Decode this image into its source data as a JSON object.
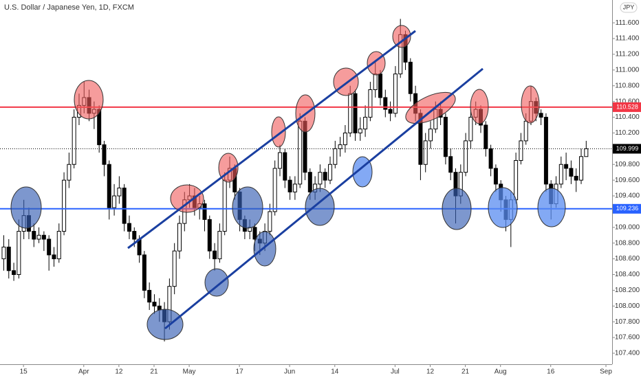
{
  "chart_data": {
    "type": "candlestick",
    "title": "U.S. Dollar / Japanese Yen, 1D, FXCM",
    "currency": "JPY",
    "open": [
      108.6,
      108.75,
      108.45,
      108.4,
      108.95,
      109.15,
      108.95,
      108.85,
      108.9,
      108.85,
      108.65,
      108.6,
      108.95,
      109.6,
      109.8,
      110.4,
      110.55,
      110.65,
      110.45,
      110.5,
      110.05,
      109.8,
      109.25,
      109.4,
      109.5,
      109.05,
      108.95,
      108.85,
      108.65,
      108.2,
      108.05,
      108.0,
      107.95,
      107.8,
      108.25,
      108.7,
      109.05,
      109.35,
      109.4,
      109.25,
      109.3,
      109.1,
      108.7,
      108.6,
      108.95,
      109.6,
      109.75,
      109.45,
      109.1,
      108.95,
      109.0,
      108.85,
      108.8,
      108.95,
      109.2,
      109.75,
      109.95,
      109.6,
      109.45,
      109.55,
      110.35,
      109.7,
      109.45,
      109.55,
      109.7,
      109.6,
      109.8,
      110.0,
      110.05,
      110.2,
      110.7,
      110.2,
      110.25,
      110.4,
      110.75,
      110.95,
      110.65,
      110.5,
      110.45,
      110.95,
      111.45,
      111.1,
      110.7,
      110.45,
      109.8,
      110.1,
      110.25,
      110.5,
      110.4,
      109.9,
      109.7,
      109.4,
      109.7,
      110.1,
      110.4,
      110.5,
      110.3,
      110.0,
      109.75,
      109.55,
      109.35,
      109.1,
      109.35,
      109.85,
      110.1,
      110.35,
      110.6,
      110.45,
      110.4,
      109.55,
      109.3,
      109.55,
      109.8,
      109.75,
      109.65,
      109.6,
      109.9
    ],
    "high": [
      108.9,
      108.85,
      108.55,
      109.1,
      109.35,
      109.25,
      109.05,
      109.0,
      108.95,
      108.9,
      108.75,
      109.05,
      109.7,
      109.95,
      110.5,
      110.7,
      110.85,
      110.75,
      110.6,
      110.55,
      110.1,
      109.85,
      109.55,
      109.65,
      109.55,
      109.15,
      109.0,
      108.9,
      108.7,
      108.3,
      108.15,
      108.1,
      108.05,
      108.35,
      108.8,
      109.15,
      109.45,
      109.55,
      109.5,
      109.4,
      109.35,
      109.15,
      108.8,
      109.05,
      109.7,
      109.9,
      109.8,
      109.5,
      109.15,
      109.1,
      109.05,
      108.95,
      109.05,
      109.3,
      109.85,
      110.05,
      110.0,
      109.65,
      109.65,
      110.45,
      110.4,
      109.75,
      109.65,
      109.8,
      109.75,
      109.9,
      110.1,
      110.15,
      110.3,
      110.8,
      110.75,
      110.4,
      110.55,
      110.85,
      111.1,
      111.0,
      110.75,
      110.6,
      111.05,
      111.65,
      111.5,
      111.15,
      110.8,
      110.5,
      110.2,
      110.35,
      110.6,
      110.6,
      110.45,
      110.0,
      109.75,
      109.8,
      110.2,
      110.5,
      110.6,
      110.55,
      110.35,
      110.05,
      109.8,
      109.6,
      109.4,
      109.45,
      109.95,
      110.2,
      110.45,
      110.8,
      110.65,
      110.5,
      110.45,
      109.6,
      109.65,
      109.9,
      109.95,
      109.85,
      109.75,
      110.0,
      110.1
    ],
    "low": [
      108.45,
      108.35,
      108.32,
      108.35,
      108.85,
      108.85,
      108.75,
      108.8,
      108.7,
      108.45,
      108.5,
      108.55,
      108.9,
      109.5,
      109.75,
      110.3,
      110.45,
      110.35,
      110.25,
      109.95,
      109.65,
      109.1,
      109.15,
      109.3,
      108.95,
      108.85,
      108.75,
      108.55,
      108.1,
      107.95,
      107.9,
      107.8,
      107.55,
      107.7,
      108.15,
      108.6,
      108.95,
      109.25,
      109.15,
      109.1,
      108.95,
      108.6,
      108.45,
      108.55,
      108.9,
      109.5,
      109.35,
      108.95,
      108.85,
      108.85,
      108.7,
      108.65,
      108.7,
      108.9,
      109.15,
      109.65,
      109.5,
      109.35,
      109.35,
      109.5,
      109.6,
      109.35,
      109.35,
      109.45,
      109.5,
      109.55,
      109.75,
      109.9,
      109.95,
      110.15,
      110.1,
      110.1,
      110.15,
      110.35,
      110.65,
      110.55,
      110.4,
      110.35,
      110.4,
      110.9,
      111.0,
      110.6,
      110.35,
      109.6,
      109.7,
      110.0,
      110.2,
      110.3,
      109.8,
      109.6,
      109.05,
      109.3,
      109.65,
      110.0,
      110.3,
      110.2,
      109.9,
      109.65,
      109.45,
      109.2,
      108.95,
      108.75,
      109.3,
      109.8,
      110.05,
      110.3,
      110.35,
      110.3,
      109.45,
      109.1,
      109.25,
      109.5,
      109.6,
      109.55,
      109.45,
      109.55,
      109.9
    ],
    "close": [
      108.75,
      108.45,
      108.4,
      108.95,
      109.15,
      108.95,
      108.85,
      108.9,
      108.85,
      108.65,
      108.6,
      108.95,
      109.6,
      109.8,
      110.4,
      110.55,
      110.65,
      110.45,
      110.5,
      110.05,
      109.8,
      109.25,
      109.4,
      109.5,
      109.05,
      108.95,
      108.85,
      108.65,
      108.2,
      108.05,
      108.0,
      107.95,
      107.8,
      108.25,
      108.7,
      109.05,
      109.35,
      109.4,
      109.25,
      109.3,
      109.1,
      108.7,
      108.6,
      108.95,
      109.6,
      109.75,
      109.45,
      109.1,
      108.95,
      109.0,
      108.85,
      108.8,
      108.95,
      109.2,
      109.75,
      109.95,
      109.6,
      109.45,
      109.55,
      110.35,
      109.7,
      109.45,
      109.55,
      109.7,
      109.6,
      109.8,
      110.0,
      110.05,
      110.2,
      110.7,
      110.2,
      110.25,
      110.4,
      110.75,
      110.95,
      110.65,
      110.5,
      110.45,
      110.95,
      111.45,
      111.1,
      110.7,
      110.45,
      109.8,
      110.1,
      110.25,
      110.5,
      110.4,
      109.9,
      109.7,
      109.4,
      109.7,
      110.1,
      110.4,
      110.5,
      110.3,
      110.0,
      109.75,
      109.55,
      109.35,
      109.1,
      109.35,
      109.85,
      110.1,
      110.35,
      110.6,
      110.45,
      110.4,
      109.55,
      109.3,
      109.55,
      109.8,
      109.75,
      109.65,
      109.6,
      109.9,
      109.999
    ],
    "up_color": "#ffffff",
    "down_color": "#000000",
    "outline_color": "#000000",
    "xlim": [
      -0.68,
      121.23
    ],
    "xticks": [
      {
        "value": 4,
        "label": "15"
      },
      {
        "value": 16,
        "label": "Apr"
      },
      {
        "value": 23,
        "label": "12"
      },
      {
        "value": 30,
        "label": "21"
      },
      {
        "value": 37,
        "label": "May"
      },
      {
        "value": 47,
        "label": "17"
      },
      {
        "value": 57,
        "label": "Jun"
      },
      {
        "value": 66,
        "label": "14"
      },
      {
        "value": 78,
        "label": "Jul"
      },
      {
        "value": 85,
        "label": "12"
      },
      {
        "value": 92,
        "label": "21"
      },
      {
        "value": 99,
        "label": "Aug"
      },
      {
        "value": 109,
        "label": "16"
      },
      {
        "value": 120,
        "label": "Sep"
      }
    ],
    "ylim": [
      107.26,
      111.89
    ],
    "yticks": [
      {
        "value": 107.4,
        "label": "107.400"
      },
      {
        "value": 107.6,
        "label": "107.600"
      },
      {
        "value": 107.8,
        "label": "107.800"
      },
      {
        "value": 108.0,
        "label": "108.000"
      },
      {
        "value": 108.2,
        "label": "108.200"
      },
      {
        "value": 108.4,
        "label": "108.400"
      },
      {
        "value": 108.6,
        "label": "108.600"
      },
      {
        "value": 108.8,
        "label": "108.800"
      },
      {
        "value": 109.0,
        "label": "109.000"
      },
      {
        "value": 109.2,
        "label": "109.200"
      },
      {
        "value": 109.4,
        "label": "109.400"
      },
      {
        "value": 109.6,
        "label": "109.600"
      },
      {
        "value": 109.8,
        "label": "109.800"
      },
      {
        "value": 110.0,
        "label": "110.000"
      },
      {
        "value": 110.2,
        "label": "110.200"
      },
      {
        "value": 110.4,
        "label": "110.400"
      },
      {
        "value": 110.6,
        "label": "110.600"
      },
      {
        "value": 110.8,
        "label": "110.800"
      },
      {
        "value": 111.0,
        "label": "111.000"
      },
      {
        "value": 111.2,
        "label": "111.200"
      },
      {
        "value": 111.4,
        "label": "111.400"
      },
      {
        "value": 111.6,
        "label": "111.600"
      }
    ],
    "hlines": [
      {
        "value": 110.528,
        "color": "#f23645"
      },
      {
        "value": 109.236,
        "color": "#2962ff"
      }
    ],
    "last_price_color": "#000000"
  }
}
